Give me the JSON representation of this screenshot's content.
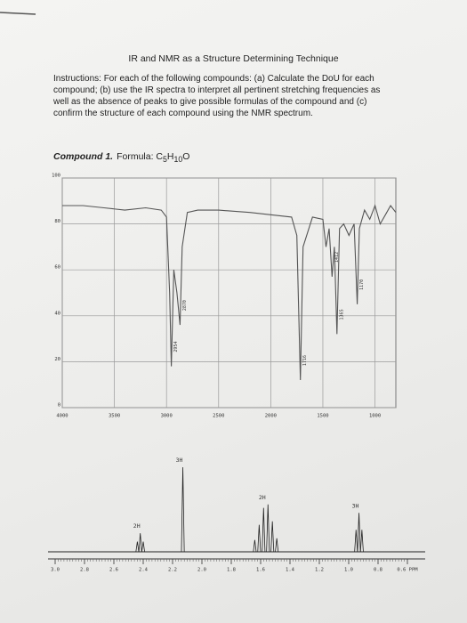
{
  "header": {
    "title": "IR and NMR as a Structure Determining Technique"
  },
  "instructions": "Instructions: For each of the following compounds: (a) Calculate the DoU for each compound; (b) use the IR spectra to interpret all pertinent stretching frequencies as well as the absence of peaks to give possible formulas of the compound and (c) confirm the structure of each compound using the NMR spectrum.",
  "compound": {
    "label": "Compound 1.",
    "formula_parts": [
      "Formula: C",
      "5",
      "H",
      "10",
      "O"
    ]
  },
  "chart_data": [
    {
      "type": "line",
      "color": "#555555",
      "grid": true,
      "xlim": [
        4000,
        800
      ],
      "xticks": [
        4000,
        3500,
        3000,
        2500,
        2000,
        1500,
        1000
      ],
      "ylim": [
        0,
        100
      ],
      "yticks": [
        0,
        20,
        40,
        60,
        80,
        100
      ],
      "x": [
        4000,
        3800,
        3600,
        3400,
        3200,
        3050,
        3000,
        2970,
        2954,
        2930,
        2900,
        2870,
        2850,
        2800,
        2700,
        2500,
        2200,
        2000,
        1800,
        1750,
        1716,
        1690,
        1600,
        1500,
        1470,
        1440,
        1412,
        1390,
        1365,
        1340,
        1300,
        1250,
        1200,
        1170,
        1150,
        1100,
        1050,
        1000,
        950,
        900,
        850,
        800
      ],
      "values": [
        88,
        88,
        87,
        86,
        87,
        86,
        83,
        50,
        18,
        60,
        50,
        36,
        70,
        85,
        86,
        86,
        85,
        84,
        83,
        75,
        12,
        70,
        83,
        82,
        70,
        78,
        57,
        70,
        32,
        78,
        80,
        75,
        80,
        45,
        78,
        86,
        82,
        88,
        80,
        84,
        88,
        85
      ],
      "peak_labels": [
        2954,
        2870,
        1716,
        1412,
        1365,
        1170
      ]
    },
    {
      "type": "stem",
      "color": "#222222",
      "xlim": [
        3,
        0.6
      ],
      "xticks": [
        {
          "value": 3,
          "label": "3.0"
        },
        2.8,
        2.6,
        2.4,
        2.2,
        {
          "value": 2,
          "label": "2.0"
        },
        1.8,
        1.6,
        1.4,
        1.2,
        {
          "value": 1,
          "label": "1.0"
        },
        0.8,
        {
          "value": 0.6,
          "label": "0.6 PPM"
        }
      ],
      "series": [
        {
          "name": "2H",
          "x": [
            2.44,
            2.42,
            2.4
          ],
          "values": [
            12,
            22,
            12
          ]
        },
        {
          "name": "3H",
          "x": [
            2.13
          ],
          "values": [
            100
          ]
        },
        {
          "name": "2H",
          "x": [
            1.64,
            1.61,
            1.58,
            1.55,
            1.52,
            1.49
          ],
          "values": [
            14,
            32,
            52,
            56,
            36,
            16
          ]
        },
        {
          "name": "3H",
          "x": [
            0.95,
            0.93,
            0.91
          ],
          "values": [
            26,
            46,
            26
          ]
        }
      ]
    }
  ]
}
